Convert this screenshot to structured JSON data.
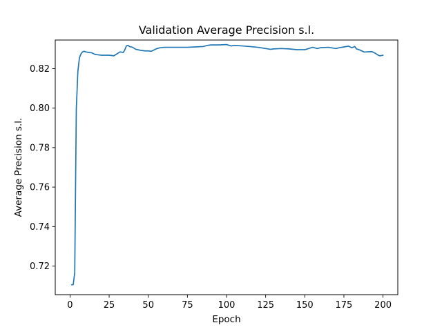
{
  "chart_data": {
    "type": "line",
    "title": "Validation Average Precision s.l.",
    "xlabel": "Epoch",
    "ylabel": "Average Precision s.l.",
    "xlim": [
      -9.45,
      209.45
    ],
    "ylim": [
      0.7055,
      0.8345
    ],
    "xticks": [
      0,
      25,
      50,
      75,
      100,
      125,
      150,
      175,
      200
    ],
    "xtick_labels": [
      "0",
      "25",
      "50",
      "75",
      "100",
      "125",
      "150",
      "175",
      "200"
    ],
    "yticks": [
      0.72,
      0.74,
      0.76,
      0.78,
      0.8,
      0.82
    ],
    "ytick_labels": [
      "0.72",
      "0.74",
      "0.76",
      "0.78",
      "0.80",
      "0.82"
    ],
    "grid": false,
    "line_color": "#1f77b4",
    "series": [
      {
        "x": [
          1,
          2,
          3,
          4,
          5,
          6,
          7,
          8,
          9,
          10,
          12,
          14,
          16,
          18,
          20,
          25,
          28,
          30,
          32,
          34,
          35,
          36,
          37,
          38,
          40,
          42,
          45,
          48,
          50,
          52,
          55,
          57,
          60,
          65,
          70,
          75,
          80,
          85,
          88,
          90,
          95,
          100,
          103,
          105,
          110,
          115,
          120,
          125,
          128,
          130,
          135,
          140,
          145,
          150,
          155,
          158,
          160,
          165,
          170,
          172,
          175,
          178,
          180,
          182,
          183,
          185,
          188,
          190,
          193,
          195,
          197,
          198,
          200
        ],
        "y": [
          0.7105,
          0.7105,
          0.7165,
          0.7995,
          0.8185,
          0.8255,
          0.8275,
          0.8285,
          0.8288,
          0.8285,
          0.8282,
          0.828,
          0.8272,
          0.827,
          0.8268,
          0.8268,
          0.8265,
          0.8275,
          0.8285,
          0.8282,
          0.8295,
          0.8315,
          0.8318,
          0.8312,
          0.8308,
          0.8298,
          0.8293,
          0.829,
          0.829,
          0.8288,
          0.83,
          0.8305,
          0.8308,
          0.8308,
          0.8308,
          0.8308,
          0.831,
          0.8312,
          0.8318,
          0.832,
          0.832,
          0.8322,
          0.8315,
          0.8318,
          0.8315,
          0.8312,
          0.8308,
          0.8302,
          0.8298,
          0.83,
          0.8302,
          0.83,
          0.8296,
          0.8296,
          0.8308,
          0.8302,
          0.8306,
          0.8308,
          0.8302,
          0.8306,
          0.831,
          0.8314,
          0.8306,
          0.8312,
          0.83,
          0.8295,
          0.8284,
          0.8285,
          0.8286,
          0.8278,
          0.8268,
          0.8265,
          0.8268
        ]
      }
    ]
  }
}
